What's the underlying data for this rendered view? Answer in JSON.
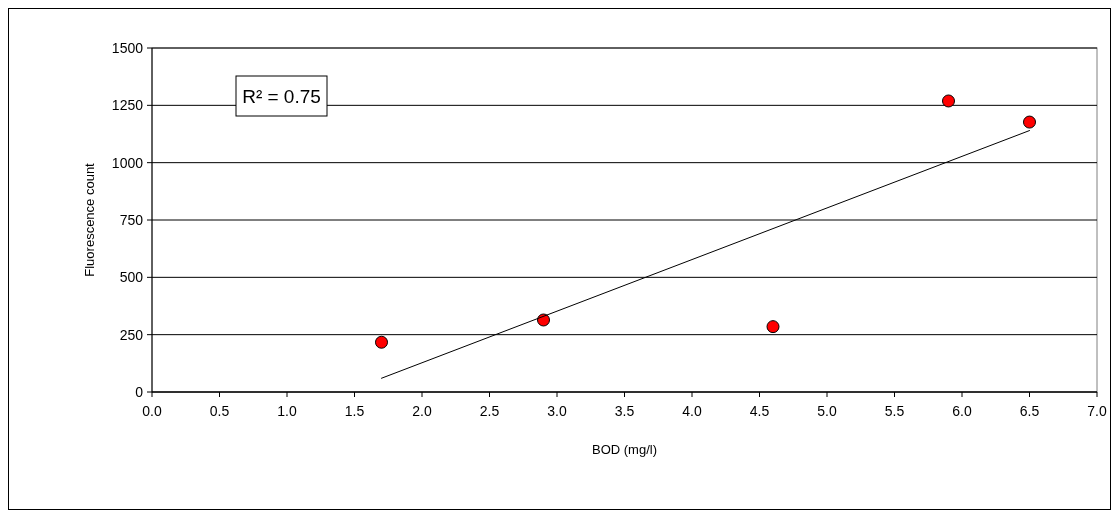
{
  "chart_data": {
    "type": "scatter",
    "xlabel": "BOD (mg/l)",
    "ylabel": "Fluorescence count",
    "annotations": [
      "R² = 0.75"
    ],
    "series": [
      {
        "color": "#ff0000",
        "marker": "circle",
        "x": [
          1.7,
          2.9,
          4.6,
          5.9,
          6.5
        ],
        "values": [
          217,
          314,
          285,
          1269,
          1177
        ]
      },
      {
        "type": "line",
        "color": "#000000",
        "marker": "none",
        "x": [
          1.7,
          6.5
        ],
        "values": [
          60,
          1140
        ]
      }
    ],
    "xlim": [
      0,
      7
    ],
    "xticks": [
      {
        "value": 0,
        "label": "0.0"
      },
      0.5,
      {
        "value": 1,
        "label": "1.0"
      },
      1.5,
      {
        "value": 2,
        "label": "2.0"
      },
      2.5,
      {
        "value": 3,
        "label": "3.0"
      },
      3.5,
      {
        "value": 4,
        "label": "4.0"
      },
      4.5,
      {
        "value": 5,
        "label": "5.0"
      },
      5.5,
      {
        "value": 6,
        "label": "6.0"
      },
      6.5,
      {
        "value": 7,
        "label": "7.0"
      }
    ],
    "ylim": [
      0,
      1500
    ],
    "yticks": [
      0,
      250,
      500,
      750,
      1000,
      1250,
      1500
    ],
    "grid": "y"
  }
}
